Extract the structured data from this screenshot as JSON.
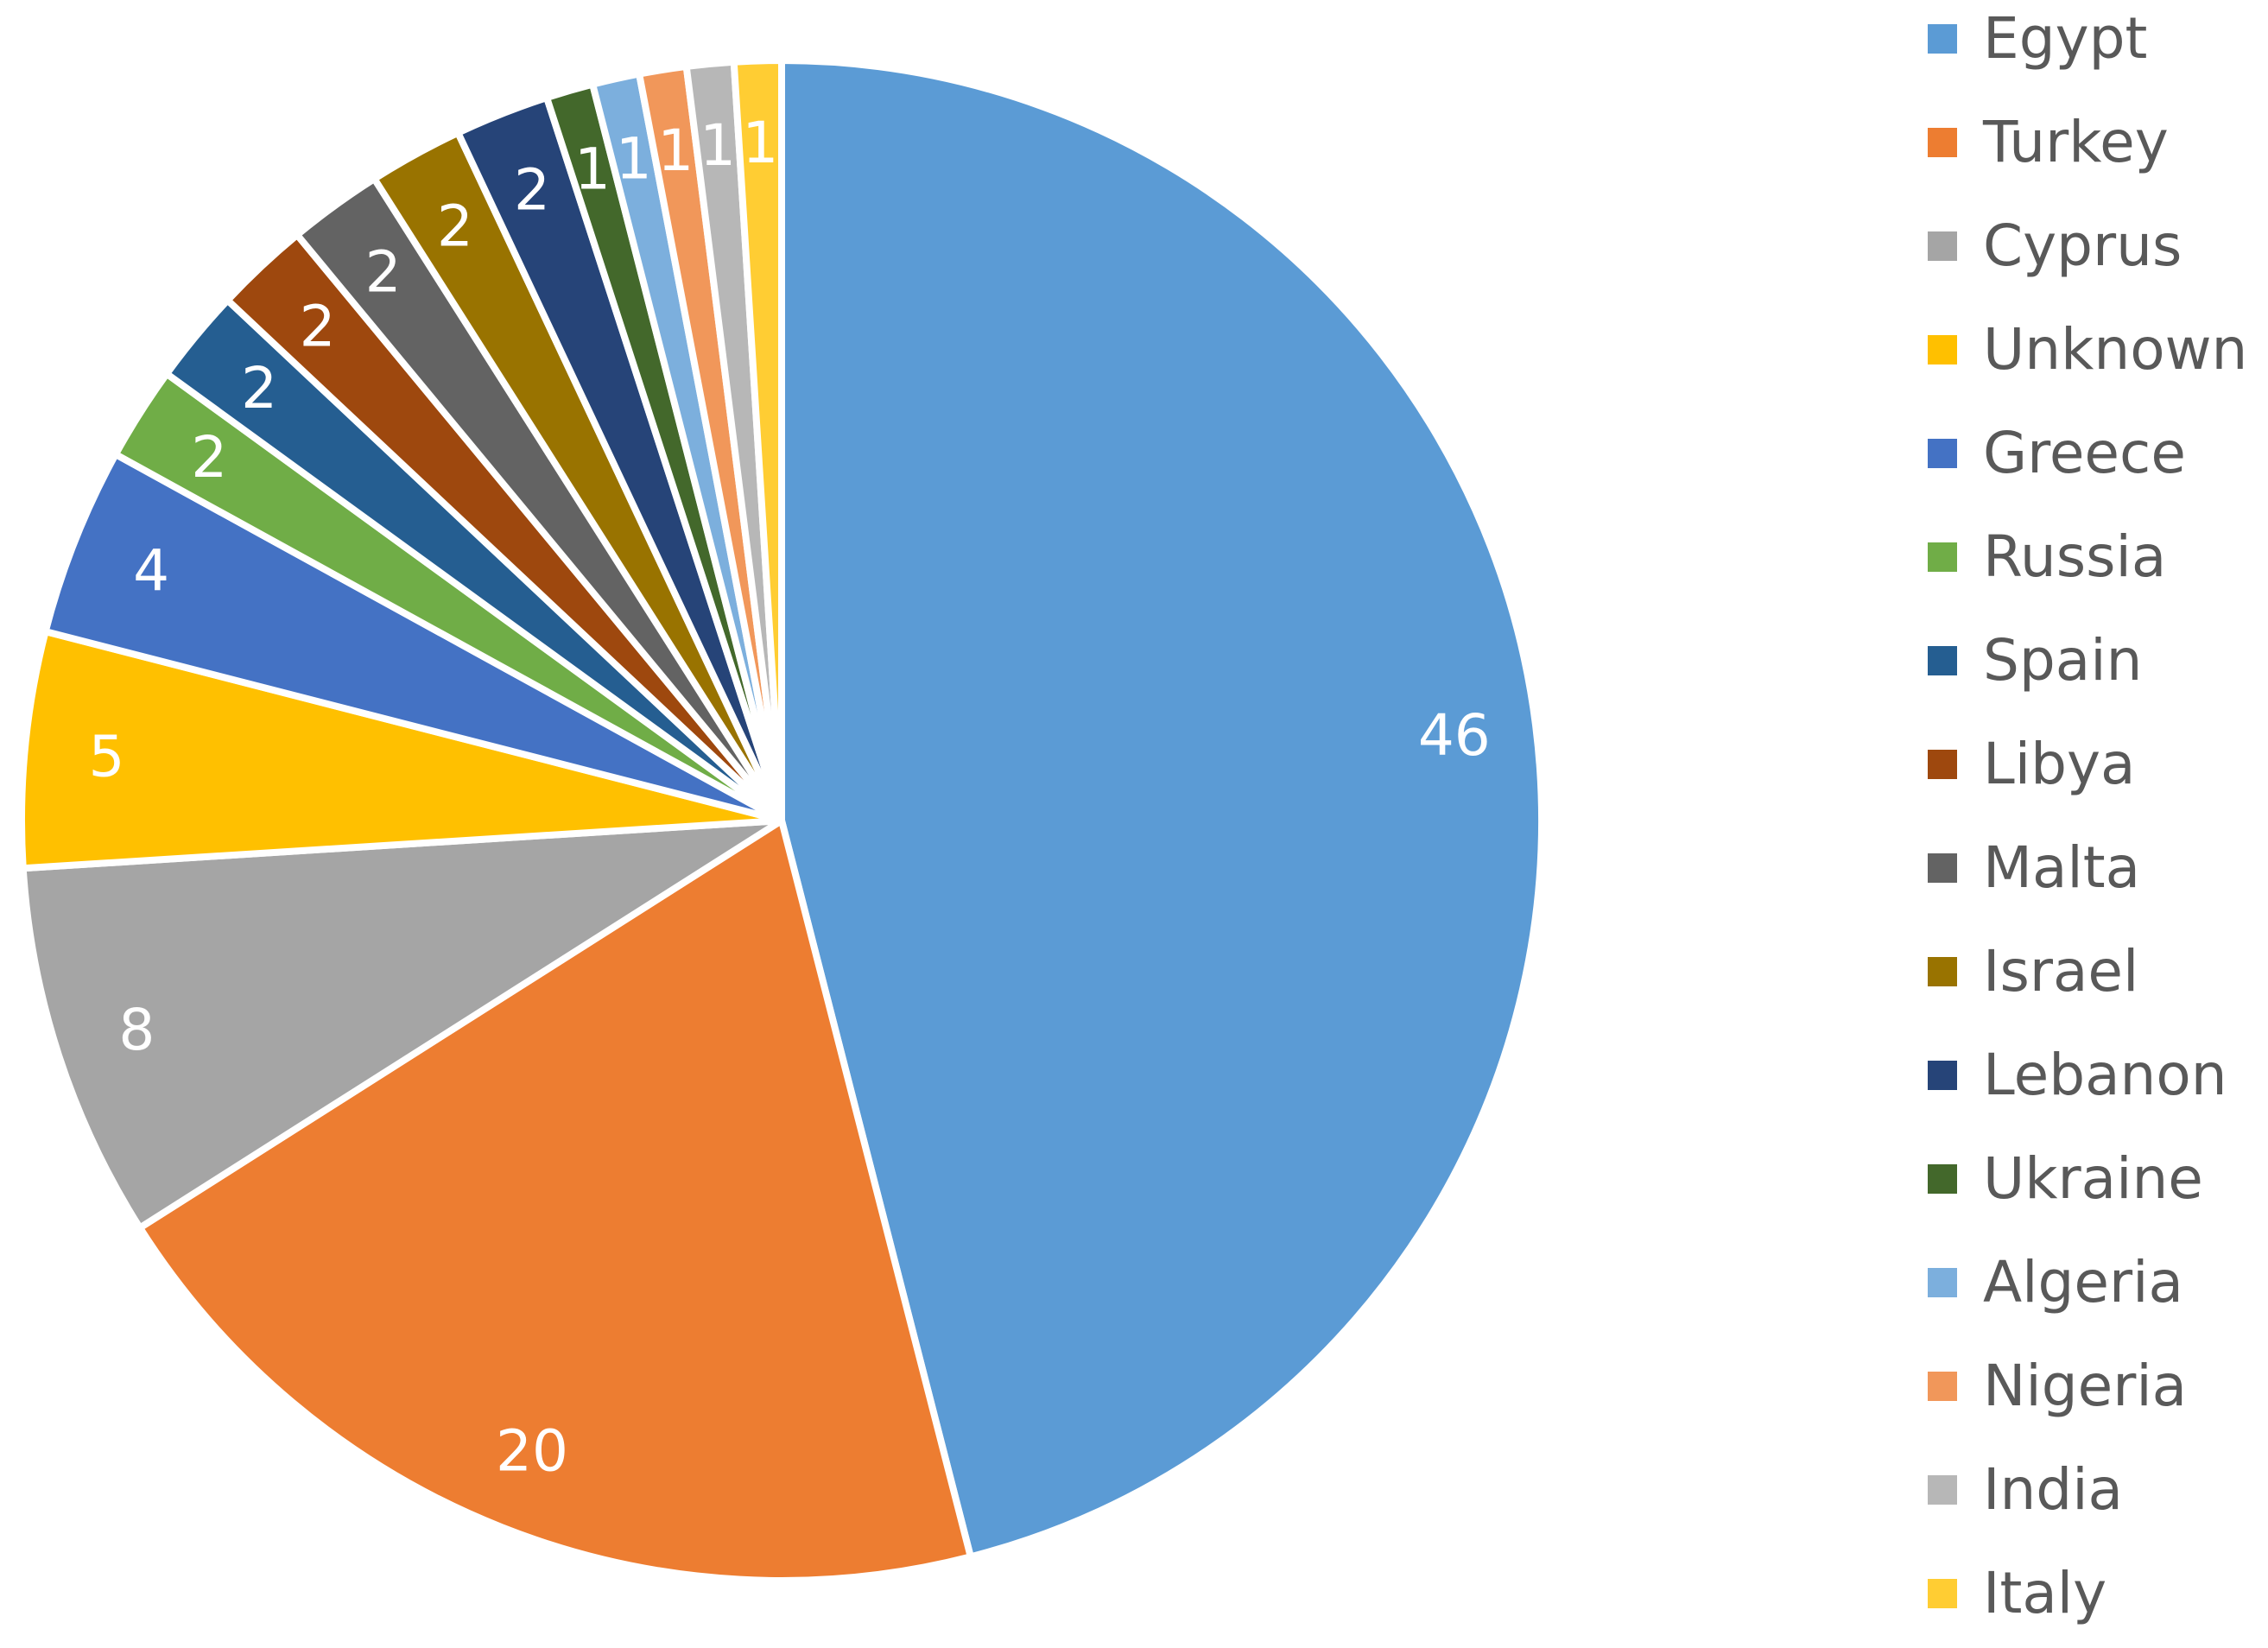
{
  "chart_data": {
    "type": "pie",
    "title": "",
    "categories": [
      "Egypt",
      "Turkey",
      "Cyprus",
      "Unknown",
      "Greece",
      "Russia",
      "Spain",
      "Libya",
      "Malta",
      "Israel",
      "Lebanon",
      "Ukraine",
      "Algeria",
      "Nigeria",
      "India",
      "Italy"
    ],
    "values": [
      46,
      20,
      8,
      5,
      4,
      2,
      2,
      2,
      2,
      2,
      2,
      1,
      1,
      1,
      1,
      1
    ],
    "colors": [
      "#5B9BD5",
      "#ED7D31",
      "#A5A5A5",
      "#FFC000",
      "#4472C4",
      "#70AD47",
      "#255E91",
      "#9E480E",
      "#636363",
      "#997300",
      "#264478",
      "#43682B",
      "#7CAFDD",
      "#F1975A",
      "#B7B7B7",
      "#FFCD33"
    ],
    "data_labels": [
      "46",
      "20",
      "8",
      "5",
      "4",
      "2",
      "2",
      "2",
      "2",
      "2",
      "2",
      "1",
      "1",
      "1",
      "1",
      "1"
    ],
    "legend": {
      "position": "right",
      "entries": [
        "Egypt",
        "Turkey",
        "Cyprus",
        "Unknown",
        "Greece",
        "Russia",
        "Spain",
        "Libya",
        "Malta",
        "Israel",
        "Lebanon",
        "Ukraine",
        "Algeria",
        "Nigeria",
        "India",
        "Italy"
      ]
    }
  }
}
